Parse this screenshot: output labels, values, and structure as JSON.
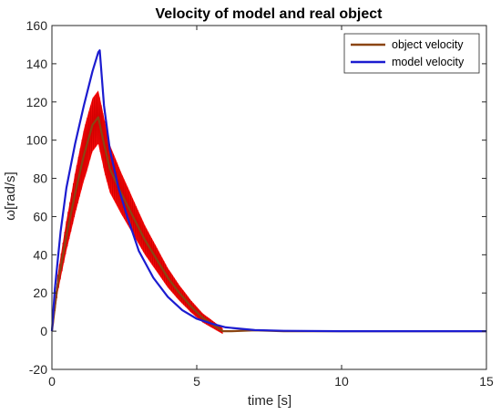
{
  "chart_data": {
    "type": "line",
    "title": "Velocity of model and real object",
    "xlabel": "time [s]",
    "ylabel": "ω[rad/s]",
    "xlim": [
      0,
      15
    ],
    "ylim": [
      -20,
      160
    ],
    "xticks": [
      "0",
      "5",
      "10",
      "15"
    ],
    "yticks": [
      "-20",
      "0",
      "20",
      "40",
      "60",
      "80",
      "100",
      "120",
      "140",
      "160"
    ],
    "grid": false,
    "legend_position": "top-right",
    "series": [
      {
        "name": "object velocity",
        "color": "#8b4513",
        "noise_band_color": "#ff0000",
        "x": [
          0,
          0.2,
          0.5,
          0.8,
          1.1,
          1.4,
          1.6,
          1.8,
          2.0,
          2.4,
          2.8,
          3.2,
          3.6,
          4.0,
          4.4,
          4.8,
          5.2,
          5.6,
          5.9,
          6.2,
          7,
          8,
          10,
          15
        ],
        "y": [
          0,
          25,
          50,
          72,
          92,
          108,
          112,
          98,
          85,
          72,
          60,
          48,
          38,
          28,
          20,
          13,
          7,
          3,
          0,
          0,
          0.5,
          0,
          0,
          0
        ]
      },
      {
        "name": "model velocity",
        "color": "#1c1cd0",
        "x": [
          0,
          0.1,
          0.3,
          0.5,
          0.8,
          1.1,
          1.4,
          1.6,
          1.65,
          1.8,
          2.0,
          2.3,
          2.6,
          3.0,
          3.5,
          4.0,
          4.5,
          5.0,
          5.5,
          6.0,
          7,
          8,
          10,
          15
        ],
        "y": [
          0,
          22,
          52,
          75,
          98,
          118,
          136,
          146,
          147,
          118,
          95,
          75,
          60,
          42,
          28,
          18,
          11,
          6.5,
          4,
          2,
          0.6,
          0.2,
          0,
          0
        ]
      }
    ]
  }
}
